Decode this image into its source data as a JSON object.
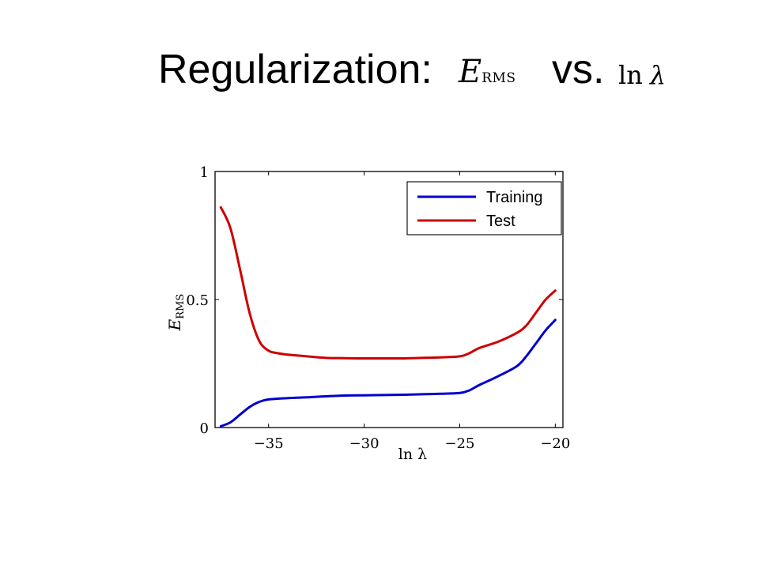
{
  "slide": {
    "title_prefix": "Regularization:",
    "title_e": "E",
    "title_e_sub": "RMS",
    "title_vs": "vs.",
    "title_ln": "ln",
    "title_lambda": "λ"
  },
  "chart_data": {
    "type": "line",
    "title": "",
    "xlabel": "ln λ",
    "ylabel_main": "E",
    "ylabel_sub": "RMS",
    "xlim": [
      -37.8,
      -19.6
    ],
    "ylim": [
      0,
      1
    ],
    "xticks": [
      -35,
      -30,
      -25,
      -20
    ],
    "xtick_labels": [
      "−35",
      "−30",
      "−25",
      "−20"
    ],
    "yticks": [
      0,
      0.5,
      1
    ],
    "ytick_labels": [
      "0",
      "0.5",
      "1"
    ],
    "grid": false,
    "legend_position": "top-right",
    "series": [
      {
        "name": "Training",
        "color": "#0000cc",
        "x": [
          -37.5,
          -37.0,
          -36.5,
          -36.0,
          -35.5,
          -35.0,
          -34.0,
          -33.0,
          -32.0,
          -31.0,
          -30.0,
          -29.0,
          -28.0,
          -27.0,
          -26.0,
          -25.0,
          -24.5,
          -24.0,
          -23.0,
          -22.0,
          -21.5,
          -21.0,
          -20.5,
          -20.0
        ],
        "values": [
          0.005,
          0.02,
          0.05,
          0.08,
          0.1,
          0.11,
          0.115,
          0.118,
          0.122,
          0.125,
          0.126,
          0.127,
          0.128,
          0.13,
          0.132,
          0.135,
          0.145,
          0.165,
          0.2,
          0.24,
          0.28,
          0.33,
          0.38,
          0.42
        ]
      },
      {
        "name": "Test",
        "color": "#cc0000",
        "x": [
          -37.5,
          -37.0,
          -36.5,
          -36.0,
          -35.5,
          -35.0,
          -34.5,
          -34.0,
          -33.0,
          -32.0,
          -31.0,
          -30.0,
          -29.0,
          -28.0,
          -27.0,
          -26.0,
          -25.0,
          -24.5,
          -24.0,
          -23.0,
          -22.0,
          -21.5,
          -21.0,
          -20.5,
          -20.0
        ],
        "values": [
          0.86,
          0.78,
          0.62,
          0.45,
          0.34,
          0.3,
          0.29,
          0.285,
          0.278,
          0.272,
          0.271,
          0.27,
          0.27,
          0.27,
          0.272,
          0.274,
          0.278,
          0.29,
          0.31,
          0.335,
          0.37,
          0.4,
          0.45,
          0.5,
          0.535
        ]
      }
    ]
  }
}
